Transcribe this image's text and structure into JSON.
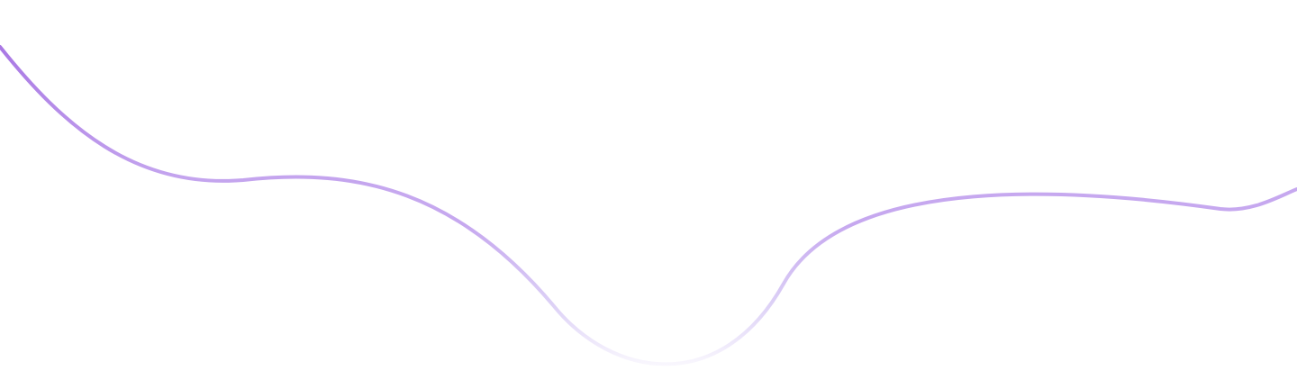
{
  "background_color": "#ffffff",
  "wave": {
    "icon": "decorative-wave-line",
    "colors": {
      "strong": "#a774e3",
      "mid": "#c6a8ef",
      "light": "#dcd0f6",
      "fade": "#ffffff"
    }
  }
}
